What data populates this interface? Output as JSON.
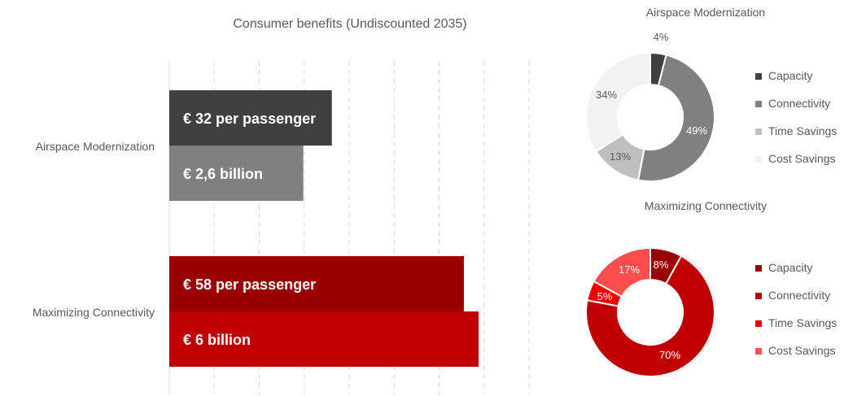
{
  "colors": {
    "bar_passenger_airspace": "#404040",
    "bar_total_airspace": "#808080",
    "bar_passenger_connectivity": "#9a0000",
    "bar_total_connectivity": "#c00000",
    "gridline": "#d9d9d9",
    "text": "#595959"
  },
  "chart_data": [
    {
      "type": "bar",
      "orientation": "horizontal",
      "title": "Consumer benefits (Undiscounted 2035)",
      "categories": [
        "Airspace Modernization",
        "Maximizing Connectivity"
      ],
      "xlim": [
        0,
        80
      ],
      "grid": true,
      "series": [
        {
          "values": [
            32,
            58
          ],
          "labels": [
            "€ 32 per passenger",
            "€ 58 per passenger"
          ]
        },
        {
          "values": [
            2.6,
            6
          ],
          "labels": [
            "€ 2,6 billion",
            "€ 6 billion"
          ]
        }
      ]
    },
    {
      "type": "pie",
      "style": "donut",
      "title": "Airspace Modernization",
      "labels": [
        "Capacity",
        "Connectivity",
        "Time Savings",
        "Cost Savings"
      ],
      "values": [
        4,
        49,
        13,
        34
      ],
      "value_labels": [
        "4%",
        "49%",
        "13%",
        "34%"
      ],
      "colors": [
        "#404040",
        "#808080",
        "#bfbfbf",
        "#f2f2f2"
      ],
      "legend": "right"
    },
    {
      "type": "pie",
      "style": "donut",
      "title": "Maximizing Connectivity",
      "labels": [
        "Capacity",
        "Connectivity",
        "Time Savings",
        "Cost Savings"
      ],
      "values": [
        8,
        70,
        5,
        17
      ],
      "value_labels": [
        "8%",
        "70%",
        "5%",
        "17%"
      ],
      "colors": [
        "#9a0000",
        "#c00000",
        "#ee0000",
        "#ff4d4d"
      ],
      "legend": "right"
    }
  ]
}
